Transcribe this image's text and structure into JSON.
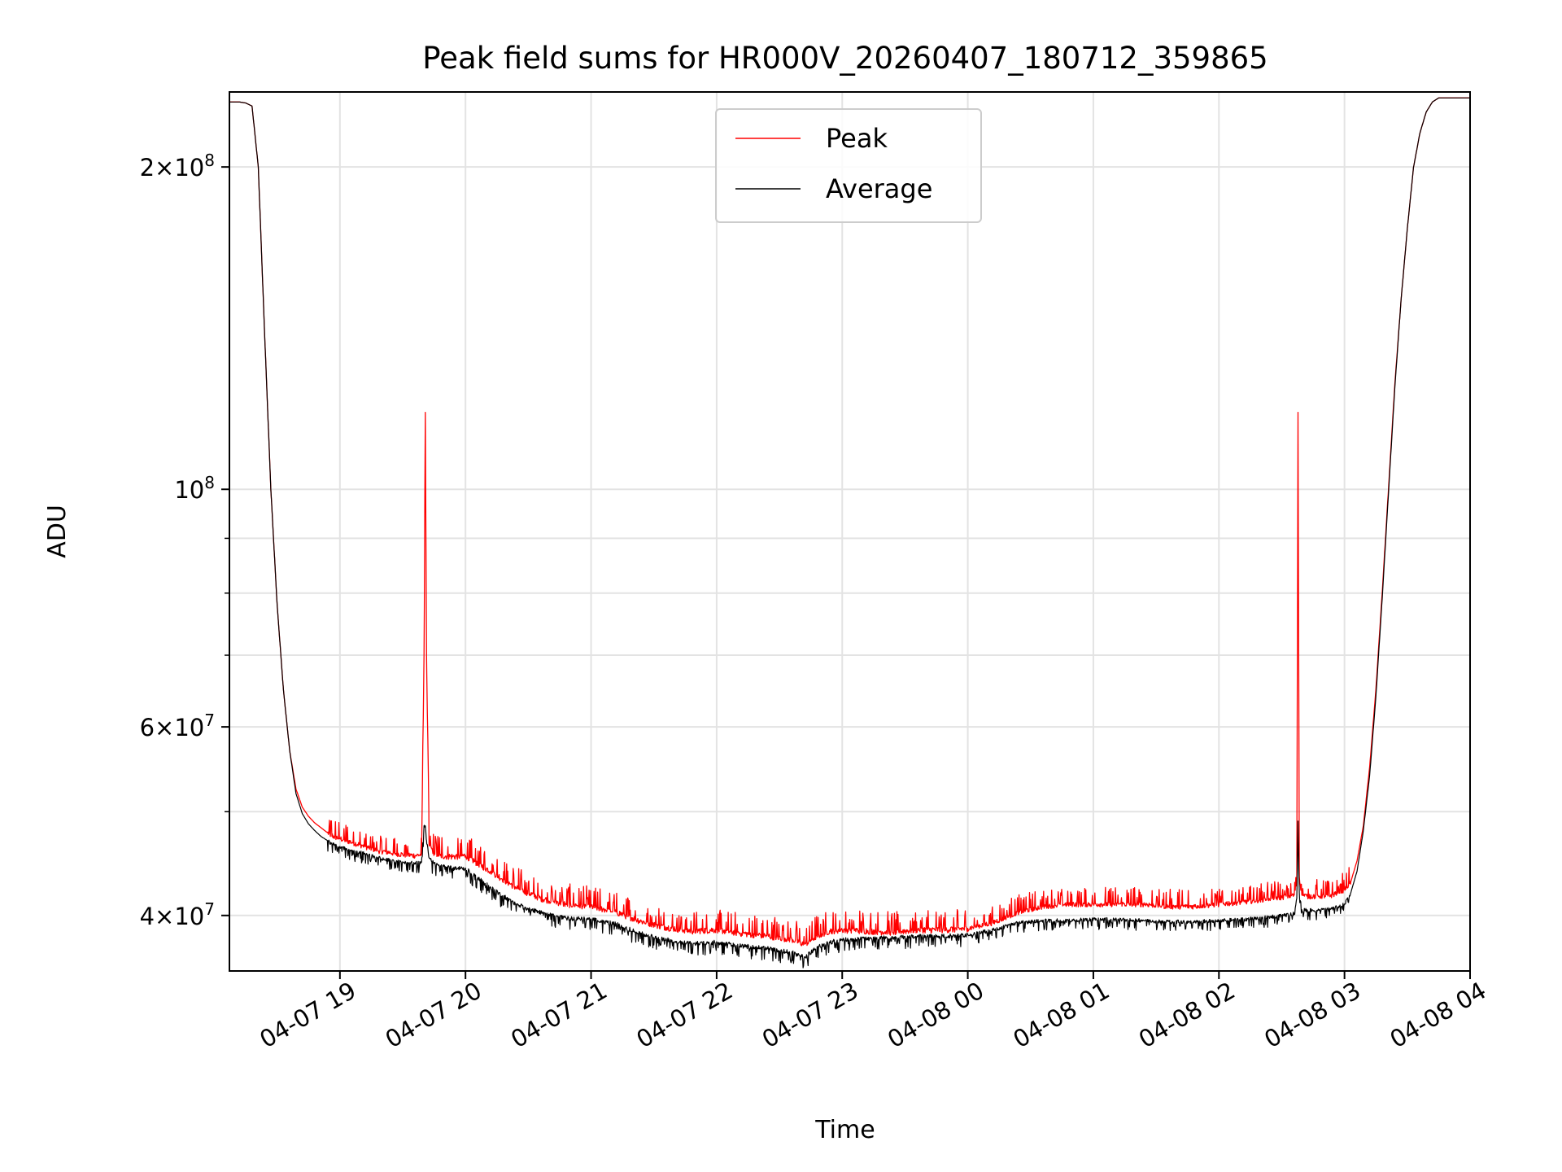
{
  "chart_data": {
    "type": "line",
    "title": "Peak field sums for HR000V_20260407_180712_359865",
    "xlabel": "Time",
    "ylabel": "ADU",
    "yscale": "log",
    "ylim": [
      35500000,
      235000000
    ],
    "x_unit": "hours since 04-07 00:00",
    "xlim": [
      18.12,
      28.0
    ],
    "grid": true,
    "legend_position": "upper-center",
    "x_ticks": [
      {
        "value": 19,
        "label": "04-07 19"
      },
      {
        "value": 20,
        "label": "04-07 20"
      },
      {
        "value": 21,
        "label": "04-07 21"
      },
      {
        "value": 22,
        "label": "04-07 22"
      },
      {
        "value": 23,
        "label": "04-07 23"
      },
      {
        "value": 24,
        "label": "04-08 00"
      },
      {
        "value": 25,
        "label": "04-08 01"
      },
      {
        "value": 26,
        "label": "04-08 02"
      },
      {
        "value": 27,
        "label": "04-08 03"
      },
      {
        "value": 28,
        "label": "04-08 04"
      }
    ],
    "y_ticks_major": [
      {
        "value": 40000000,
        "mant": "4",
        "exp": "7"
      },
      {
        "value": 60000000,
        "mant": "6",
        "exp": "7"
      },
      {
        "value": 100000000,
        "mant": "",
        "exp": "8"
      },
      {
        "value": 200000000,
        "mant": "2",
        "exp": "8"
      }
    ],
    "y_ticks_minor": [
      50000000,
      70000000,
      80000000,
      90000000
    ],
    "series": [
      {
        "name": "Peak",
        "color": "#ff0000",
        "x": [
          18.12,
          18.2,
          18.25,
          18.3,
          18.35,
          18.4,
          18.45,
          18.5,
          18.55,
          18.6,
          18.65,
          18.7,
          18.75,
          18.8,
          18.85,
          18.9,
          18.95,
          19.0,
          19.1,
          19.2,
          19.3,
          19.4,
          19.5,
          19.6,
          19.65,
          19.67,
          19.68,
          19.69,
          19.71,
          19.75,
          19.8,
          19.9,
          20.0,
          20.2,
          20.4,
          20.6,
          20.8,
          21.0,
          21.2,
          21.4,
          21.6,
          21.8,
          22.0,
          22.2,
          22.4,
          22.6,
          22.7,
          22.8,
          22.9,
          23.0,
          23.2,
          23.4,
          23.6,
          23.8,
          24.0,
          24.2,
          24.4,
          24.6,
          24.8,
          25.0,
          25.2,
          25.4,
          25.6,
          25.8,
          26.0,
          26.2,
          26.4,
          26.5,
          26.6,
          26.62,
          26.63,
          26.64,
          26.66,
          26.7,
          26.8,
          26.9,
          27.0,
          27.05,
          27.1,
          27.15,
          27.2,
          27.25,
          27.3,
          27.35,
          27.4,
          27.45,
          27.5,
          27.55,
          27.6,
          27.65,
          27.7,
          27.75,
          27.8,
          27.9,
          28.0
        ],
        "y": [
          230000000,
          230000000,
          229500000,
          228000000,
          200000000,
          140000000,
          100000000,
          78000000,
          65000000,
          57000000,
          52500000,
          50500000,
          49500000,
          48800000,
          48300000,
          47800000,
          47400000,
          47200000,
          46800000,
          46400000,
          46000000,
          45800000,
          45600000,
          45500000,
          45600000,
          70000000,
          118000000,
          70000000,
          46500000,
          45800000,
          45500000,
          45400000,
          45500000,
          44000000,
          42500000,
          41500000,
          41000000,
          40800000,
          40300000,
          39500000,
          39000000,
          38700000,
          38800000,
          38500000,
          38300000,
          38000000,
          37600000,
          38300000,
          38700000,
          38800000,
          38700000,
          38600000,
          38800000,
          38800000,
          38900000,
          39400000,
          40300000,
          40800000,
          41000000,
          41000000,
          41000000,
          41000000,
          40800000,
          40800000,
          41000000,
          41200000,
          41500000,
          41600000,
          41800000,
          43000000,
          118000000,
          43500000,
          41800000,
          41700000,
          41700000,
          41800000,
          42300000,
          43000000,
          45000000,
          48500000,
          55000000,
          65000000,
          80000000,
          100000000,
          125000000,
          150000000,
          175000000,
          200000000,
          215000000,
          225000000,
          230000000,
          232000000,
          232000000,
          232000000,
          232000000
        ]
      },
      {
        "name": "Average",
        "color": "#000000",
        "x": [
          18.12,
          18.2,
          18.25,
          18.3,
          18.35,
          18.4,
          18.45,
          18.5,
          18.55,
          18.6,
          18.65,
          18.7,
          18.75,
          18.8,
          18.85,
          18.9,
          18.95,
          19.0,
          19.1,
          19.2,
          19.3,
          19.4,
          19.5,
          19.6,
          19.65,
          19.67,
          19.68,
          19.69,
          19.71,
          19.75,
          19.8,
          19.9,
          20.0,
          20.2,
          20.4,
          20.6,
          20.8,
          21.0,
          21.2,
          21.4,
          21.6,
          21.8,
          22.0,
          22.2,
          22.4,
          22.6,
          22.7,
          22.8,
          22.9,
          23.0,
          23.2,
          23.4,
          23.6,
          23.8,
          24.0,
          24.2,
          24.4,
          24.6,
          24.8,
          25.0,
          25.2,
          25.4,
          25.6,
          25.8,
          26.0,
          26.2,
          26.4,
          26.5,
          26.6,
          26.62,
          26.63,
          26.64,
          26.66,
          26.7,
          26.8,
          26.9,
          27.0,
          27.05,
          27.1,
          27.15,
          27.2,
          27.25,
          27.3,
          27.35,
          27.4,
          27.45,
          27.5,
          27.55,
          27.6,
          27.65,
          27.7,
          27.75,
          27.8,
          27.9,
          28.0
        ],
        "y": [
          230000000,
          230000000,
          229500000,
          228000000,
          200000000,
          140000000,
          100000000,
          78000000,
          65000000,
          57000000,
          52000000,
          49800000,
          48700000,
          48000000,
          47400000,
          47000000,
          46600000,
          46400000,
          46000000,
          45700000,
          45300000,
          45100000,
          44900000,
          44800000,
          44900000,
          48500000,
          48500000,
          47000000,
          45300000,
          44800000,
          44500000,
          44300000,
          44300000,
          42500000,
          41000000,
          40300000,
          39800000,
          39700000,
          39300000,
          38500000,
          38000000,
          37700000,
          37800000,
          37500000,
          37300000,
          37000000,
          36600000,
          37400000,
          37800000,
          38000000,
          38100000,
          38200000,
          38300000,
          38300000,
          38400000,
          38800000,
          39400000,
          39600000,
          39600000,
          39700000,
          39700000,
          39600000,
          39500000,
          39500000,
          39600000,
          39700000,
          39900000,
          40000000,
          40200000,
          41500000,
          49000000,
          42000000,
          40500000,
          40500000,
          40500000,
          40600000,
          41000000,
          42000000,
          44000000,
          48000000,
          54000000,
          64000000,
          79000000,
          99000000,
          124000000,
          150000000,
          175000000,
          200000000,
          215000000,
          225000000,
          230000000,
          232000000,
          232000000,
          232000000,
          232000000
        ]
      }
    ]
  }
}
